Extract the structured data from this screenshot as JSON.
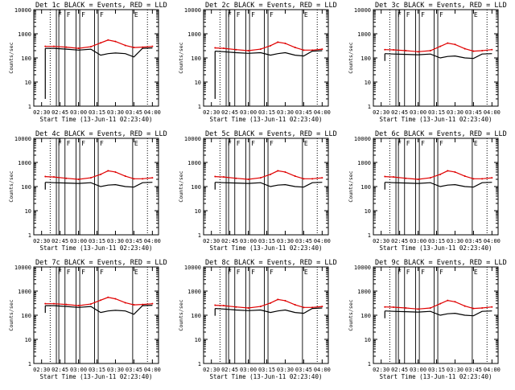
{
  "panels": [
    {
      "title": "Det 1c BLACK = Events, RED = LLD",
      "variant": "tall_start"
    },
    {
      "title": "Det 2c BLACK = Events, RED = LLD",
      "variant": "tall_start"
    },
    {
      "title": "Det 3c BLACK = Events, RED = LLD",
      "variant": "normal"
    },
    {
      "title": "Det 4c BLACK = Events, RED = LLD",
      "variant": "normal"
    },
    {
      "title": "Det 5c BLACK = Events, RED = LLD",
      "variant": "normal"
    },
    {
      "title": "Det 6c BLACK = Events, RED = LLD",
      "variant": "normal"
    },
    {
      "title": "Det 7c BLACK = Events, RED = LLD",
      "variant": "close"
    },
    {
      "title": "Det 8c BLACK = Events, RED = LLD",
      "variant": "normal"
    },
    {
      "title": "Det 9c BLACK = Events, RED = LLD",
      "variant": "normal"
    }
  ],
  "xlabel": "Start Time (13-Jun-11 02:23:40)",
  "ylabel": "Counts/sec",
  "xticks": [
    "02:30",
    "02:45",
    "03:00",
    "03:15",
    "03:30",
    "03:45",
    "04:00"
  ],
  "yticks": [
    "1",
    "10",
    "100",
    "1000",
    "10000"
  ],
  "flags": [
    "F",
    "F",
    "F",
    "F",
    "E"
  ],
  "colors": {
    "events": "#000000",
    "lld": "#e00000",
    "axes": "#000000"
  },
  "chart_data": [
    {
      "type": "line",
      "title": "Det 1c BLACK = Events, RED = LLD",
      "xlabel": "Start Time (13-Jun-11 02:23:40)",
      "ylabel": "Counts/sec",
      "yscale": "log",
      "ylim": [
        1,
        10000
      ],
      "xlim": [
        "02:23:40",
        "04:05"
      ],
      "x": [
        "02:33",
        "02:40",
        "02:50",
        "03:00",
        "03:10",
        "03:18",
        "03:24",
        "03:30",
        "03:38",
        "03:45",
        "03:52",
        "04:00"
      ],
      "series": [
        {
          "name": "Events",
          "values": [
            250,
            250,
            230,
            210,
            230,
            130,
            150,
            160,
            150,
            110,
            250,
            260
          ]
        },
        {
          "name": "LLD",
          "values": [
            300,
            300,
            280,
            250,
            290,
            420,
            550,
            480,
            330,
            270,
            280,
            300
          ]
        }
      ]
    },
    {
      "type": "line",
      "title": "Det 2c BLACK = Events, RED = LLD",
      "xlabel": "Start Time (13-Jun-11 02:23:40)",
      "ylabel": "Counts/sec",
      "yscale": "log",
      "ylim": [
        1,
        10000
      ],
      "xlim": [
        "02:23:40",
        "04:05"
      ],
      "x": [
        "02:33",
        "02:40",
        "02:50",
        "03:00",
        "03:10",
        "03:18",
        "03:24",
        "03:30",
        "03:38",
        "03:45",
        "03:52",
        "04:00"
      ],
      "series": [
        {
          "name": "Events",
          "values": [
            190,
            180,
            165,
            155,
            165,
            130,
            150,
            165,
            130,
            120,
            190,
            200
          ]
        },
        {
          "name": "LLD",
          "values": [
            260,
            250,
            220,
            200,
            230,
            320,
            450,
            400,
            270,
            210,
            210,
            230
          ]
        }
      ]
    },
    {
      "type": "line",
      "title": "Det 3c BLACK = Events, RED = LLD",
      "xlabel": "Start Time (13-Jun-11 02:23:40)",
      "ylabel": "Counts/sec",
      "yscale": "log",
      "ylim": [
        1,
        10000
      ],
      "xlim": [
        "02:23:40",
        "04:05"
      ],
      "x": [
        "02:33",
        "02:40",
        "02:50",
        "03:00",
        "03:10",
        "03:18",
        "03:24",
        "03:30",
        "03:38",
        "03:45",
        "03:52",
        "04:00"
      ],
      "series": [
        {
          "name": "Events",
          "values": [
            150,
            145,
            140,
            135,
            145,
            100,
            115,
            120,
            100,
            95,
            145,
            150
          ]
        },
        {
          "name": "LLD",
          "values": [
            220,
            215,
            200,
            180,
            200,
            300,
            410,
            360,
            240,
            190,
            200,
            220
          ]
        }
      ]
    },
    {
      "type": "line",
      "title": "Det 4c BLACK = Events, RED = LLD",
      "xlabel": "Start Time (13-Jun-11 02:23:40)",
      "ylabel": "Counts/sec",
      "yscale": "log",
      "ylim": [
        1,
        10000
      ],
      "xlim": [
        "02:23:40",
        "04:05"
      ],
      "x": [
        "02:33",
        "02:40",
        "02:50",
        "03:00",
        "03:10",
        "03:18",
        "03:24",
        "03:30",
        "03:38",
        "03:45",
        "03:52",
        "04:00"
      ],
      "series": [
        {
          "name": "Events",
          "values": [
            150,
            145,
            140,
            135,
            145,
            100,
            115,
            120,
            100,
            95,
            145,
            150
          ]
        },
        {
          "name": "LLD",
          "values": [
            260,
            250,
            220,
            200,
            230,
            320,
            450,
            400,
            270,
            210,
            210,
            230
          ]
        }
      ]
    },
    {
      "type": "line",
      "title": "Det 5c BLACK = Events, RED = LLD",
      "xlabel": "Start Time (13-Jun-11 02:23:40)",
      "ylabel": "Counts/sec",
      "yscale": "log",
      "ylim": [
        1,
        10000
      ],
      "xlim": [
        "02:23:40",
        "04:05"
      ],
      "x": [
        "02:33",
        "02:40",
        "02:50",
        "03:00",
        "03:10",
        "03:18",
        "03:24",
        "03:30",
        "03:38",
        "03:45",
        "03:52",
        "04:00"
      ],
      "series": [
        {
          "name": "Events",
          "values": [
            150,
            145,
            140,
            135,
            145,
            100,
            115,
            120,
            100,
            95,
            145,
            150
          ]
        },
        {
          "name": "LLD",
          "values": [
            260,
            250,
            220,
            200,
            230,
            320,
            450,
            400,
            270,
            210,
            210,
            230
          ]
        }
      ]
    },
    {
      "type": "line",
      "title": "Det 6c BLACK = Events, RED = LLD",
      "xlabel": "Start Time (13-Jun-11 02:23:40)",
      "ylabel": "Counts/sec",
      "yscale": "log",
      "ylim": [
        1,
        10000
      ],
      "xlim": [
        "02:23:40",
        "04:05"
      ],
      "x": [
        "02:33",
        "02:40",
        "02:50",
        "03:00",
        "03:10",
        "03:18",
        "03:24",
        "03:30",
        "03:38",
        "03:45",
        "03:52",
        "04:00"
      ],
      "series": [
        {
          "name": "Events",
          "values": [
            150,
            145,
            140,
            135,
            145,
            100,
            115,
            120,
            100,
            95,
            145,
            150
          ]
        },
        {
          "name": "LLD",
          "values": [
            260,
            250,
            220,
            200,
            230,
            320,
            450,
            400,
            270,
            210,
            210,
            230
          ]
        }
      ]
    },
    {
      "type": "line",
      "title": "Det 7c BLACK = Events, RED = LLD",
      "xlabel": "Start Time (13-Jun-11 02:23:40)",
      "ylabel": "Counts/sec",
      "yscale": "log",
      "ylim": [
        1,
        10000
      ],
      "xlim": [
        "02:23:40",
        "04:05"
      ],
      "x": [
        "02:33",
        "02:40",
        "02:50",
        "03:00",
        "03:10",
        "03:18",
        "03:24",
        "03:30",
        "03:38",
        "03:45",
        "03:52",
        "04:00"
      ],
      "series": [
        {
          "name": "Events",
          "values": [
            250,
            250,
            230,
            210,
            230,
            130,
            150,
            160,
            150,
            110,
            250,
            260
          ]
        },
        {
          "name": "LLD",
          "values": [
            300,
            300,
            280,
            250,
            290,
            420,
            550,
            480,
            330,
            270,
            280,
            300
          ]
        }
      ]
    },
    {
      "type": "line",
      "title": "Det 8c BLACK = Events, RED = LLD",
      "xlabel": "Start Time (13-Jun-11 02:23:40)",
      "ylabel": "Counts/sec",
      "yscale": "log",
      "ylim": [
        1,
        10000
      ],
      "xlim": [
        "02:23:40",
        "04:05"
      ],
      "x": [
        "02:33",
        "02:40",
        "02:50",
        "03:00",
        "03:10",
        "03:18",
        "03:24",
        "03:30",
        "03:38",
        "03:45",
        "03:52",
        "04:00"
      ],
      "series": [
        {
          "name": "Events",
          "values": [
            190,
            180,
            165,
            155,
            165,
            130,
            150,
            165,
            130,
            120,
            190,
            200
          ]
        },
        {
          "name": "LLD",
          "values": [
            260,
            250,
            220,
            200,
            230,
            320,
            450,
            400,
            270,
            210,
            210,
            230
          ]
        }
      ]
    },
    {
      "type": "line",
      "title": "Det 9c BLACK = Events, RED = LLD",
      "xlabel": "Start Time (13-Jun-11 02:23:40)",
      "ylabel": "Counts/sec",
      "yscale": "log",
      "ylim": [
        1,
        10000
      ],
      "xlim": [
        "02:23:40",
        "04:05"
      ],
      "x": [
        "02:33",
        "02:40",
        "02:50",
        "03:00",
        "03:10",
        "03:18",
        "03:24",
        "03:30",
        "03:38",
        "03:45",
        "03:52",
        "04:00"
      ],
      "series": [
        {
          "name": "Events",
          "values": [
            150,
            145,
            140,
            135,
            145,
            100,
            115,
            120,
            100,
            95,
            145,
            150
          ]
        },
        {
          "name": "LLD",
          "values": [
            220,
            215,
            200,
            180,
            200,
            300,
            410,
            360,
            240,
            190,
            200,
            220
          ]
        }
      ]
    }
  ]
}
